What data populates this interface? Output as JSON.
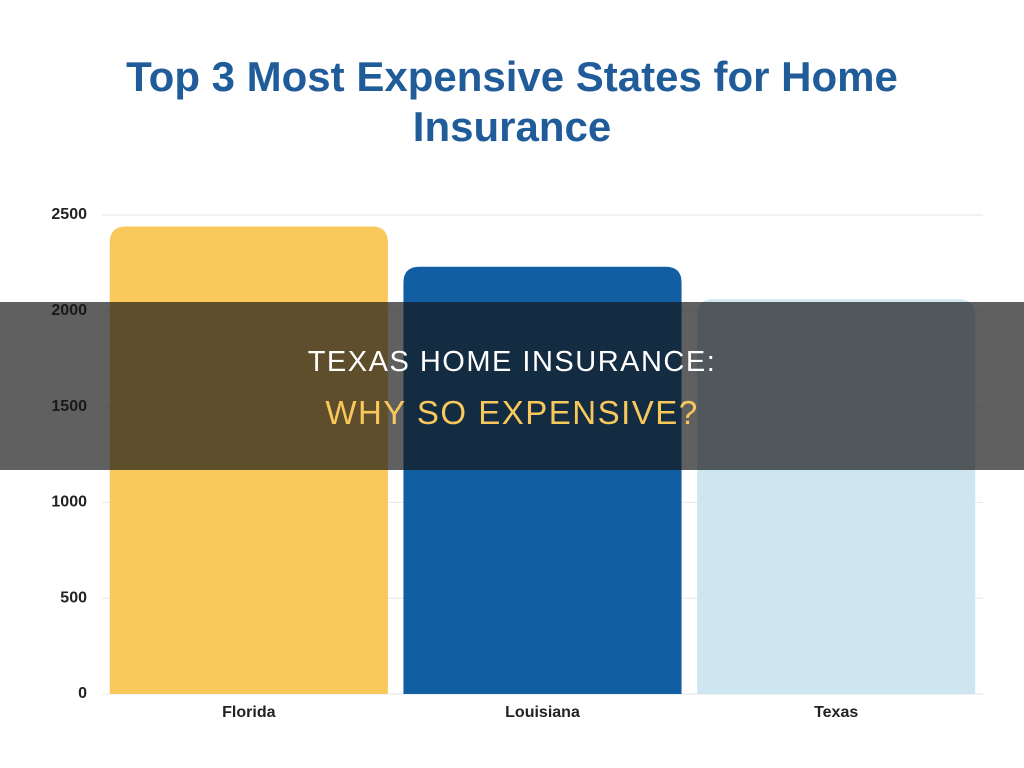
{
  "chart_data": {
    "type": "bar",
    "title": "Top 3 Most Expensive States for Home Insurance",
    "categories": [
      "Florida",
      "Louisiana",
      "Texas"
    ],
    "values": [
      2440,
      2230,
      2060
    ],
    "colors": [
      "#f9c85a",
      "#115ea3",
      "#cde6f0"
    ],
    "ylim": [
      0,
      2500
    ],
    "yticks": [
      0,
      500,
      1000,
      1500,
      2000,
      2500
    ],
    "grid": true
  },
  "overlay": {
    "line1": "TEXAS HOME INSURANCE:",
    "line2": "WHY SO EXPENSIVE?"
  }
}
